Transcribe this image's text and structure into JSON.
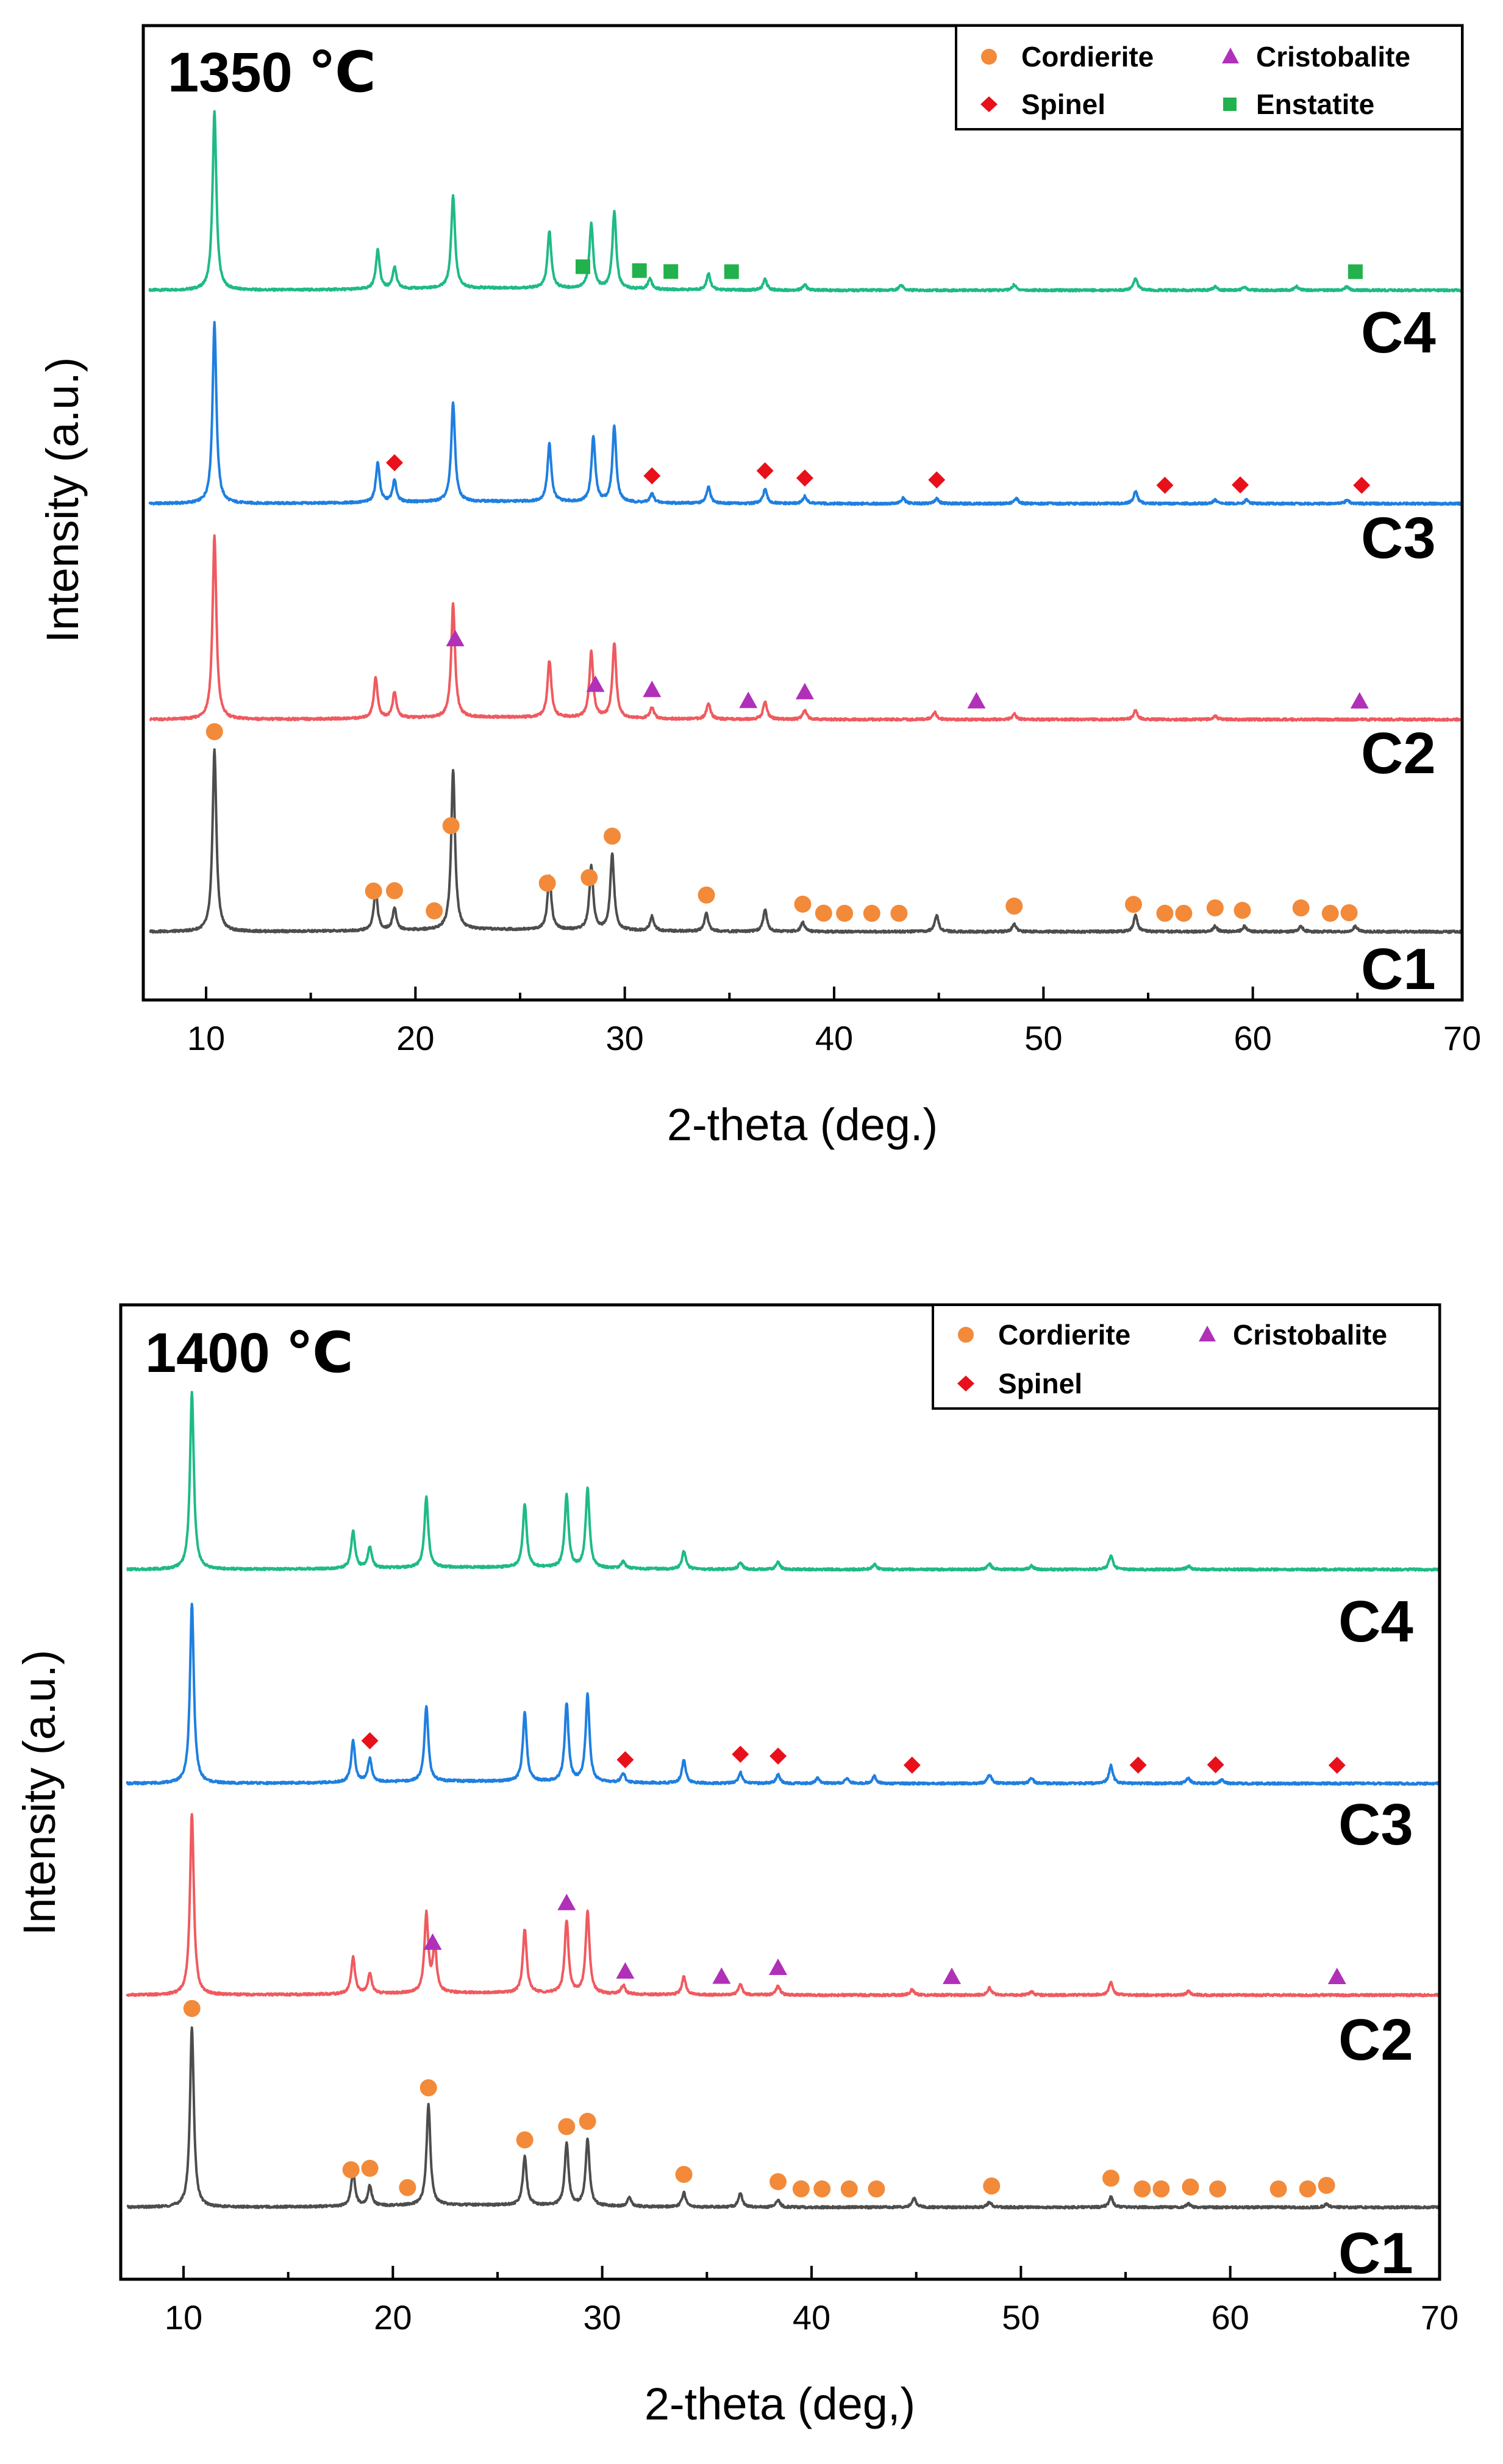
{
  "chart_data": [
    {
      "type": "line",
      "title": "1350 ℃",
      "xlabel": "2-theta (deg.)",
      "ylabel": "Intensity (a.u.)",
      "xlim": [
        7,
        70
      ],
      "xticks": [
        "10",
        "20",
        "30",
        "40",
        "50",
        "60",
        "70"
      ],
      "colors": {
        "C1": "#4d4d4d",
        "C2": "#ef5a5f",
        "C3": "#1f7fe0",
        "C4": "#1fba86"
      },
      "legend": [
        {
          "label": "Cordierite",
          "marker": "circle",
          "color": "#f28a3a"
        },
        {
          "label": "Cristobalite",
          "marker": "triangle",
          "color": "#b030b8"
        },
        {
          "label": "Spinel",
          "marker": "diamond",
          "color": "#e8101a"
        },
        {
          "label": "Enstatite",
          "marker": "square",
          "color": "#22b14c"
        }
      ],
      "series": [
        {
          "name": "C4",
          "peaks": [
            [
              10.4,
              1.0
            ],
            [
              18.2,
              0.22
            ],
            [
              19.0,
              0.12
            ],
            [
              21.8,
              0.52
            ],
            [
              26.4,
              0.32
            ],
            [
              28.4,
              0.36
            ],
            [
              29.5,
              0.43
            ],
            [
              31.2,
              0.06
            ],
            [
              34.0,
              0.09
            ],
            [
              36.7,
              0.06
            ],
            [
              38.6,
              0.03
            ],
            [
              43.2,
              0.03
            ],
            [
              48.6,
              0.03
            ],
            [
              54.4,
              0.07
            ],
            [
              58.2,
              0.02
            ],
            [
              59.6,
              0.02
            ],
            [
              62.1,
              0.02
            ],
            [
              64.5,
              0.02
            ]
          ]
        },
        {
          "name": "C3",
          "peaks": [
            [
              10.4,
              1.0
            ],
            [
              18.2,
              0.22
            ],
            [
              19.0,
              0.12
            ],
            [
              21.8,
              0.55
            ],
            [
              26.4,
              0.32
            ],
            [
              28.5,
              0.36
            ],
            [
              29.5,
              0.42
            ],
            [
              31.3,
              0.05
            ],
            [
              34.0,
              0.09
            ],
            [
              36.7,
              0.08
            ],
            [
              38.6,
              0.04
            ],
            [
              43.3,
              0.03
            ],
            [
              44.9,
              0.03
            ],
            [
              48.7,
              0.03
            ],
            [
              54.4,
              0.07
            ],
            [
              58.2,
              0.02
            ],
            [
              59.7,
              0.02
            ],
            [
              64.5,
              0.02
            ]
          ]
        },
        {
          "name": "C2",
          "peaks": [
            [
              10.4,
              1.0
            ],
            [
              18.1,
              0.22
            ],
            [
              19.0,
              0.14
            ],
            [
              21.8,
              0.62
            ],
            [
              26.4,
              0.31
            ],
            [
              28.4,
              0.36
            ],
            [
              29.5,
              0.41
            ],
            [
              31.3,
              0.06
            ],
            [
              34.0,
              0.09
            ],
            [
              36.7,
              0.1
            ],
            [
              38.6,
              0.05
            ],
            [
              44.8,
              0.04
            ],
            [
              48.6,
              0.03
            ],
            [
              54.4,
              0.05
            ],
            [
              58.2,
              0.02
            ]
          ]
        },
        {
          "name": "C1",
          "peaks": [
            [
              10.4,
              1.0
            ],
            [
              18.1,
              0.22
            ],
            [
              19.0,
              0.12
            ],
            [
              21.8,
              0.88
            ],
            [
              26.4,
              0.3
            ],
            [
              28.4,
              0.35
            ],
            [
              29.4,
              0.42
            ],
            [
              31.3,
              0.08
            ],
            [
              33.9,
              0.1
            ],
            [
              36.7,
              0.12
            ],
            [
              38.5,
              0.05
            ],
            [
              44.9,
              0.09
            ],
            [
              48.6,
              0.04
            ],
            [
              54.4,
              0.09
            ],
            [
              58.2,
              0.03
            ],
            [
              59.6,
              0.03
            ],
            [
              62.3,
              0.03
            ],
            [
              64.9,
              0.03
            ]
          ]
        }
      ],
      "markers": [
        {
          "series": "C4",
          "phase": "Enstatite",
          "x": [
            28.0,
            30.7,
            32.2,
            35.1,
            64.9
          ]
        },
        {
          "series": "C3",
          "phase": "Spinel",
          "x": [
            19.0,
            31.3,
            36.7,
            38.6,
            44.9,
            55.8,
            59.4,
            65.2
          ]
        },
        {
          "series": "C2",
          "phase": "Cristobalite",
          "x": [
            21.9,
            28.6,
            31.3,
            35.9,
            38.6,
            46.8,
            65.1
          ]
        },
        {
          "series": "C1",
          "phase": "Cordierite",
          "x": [
            10.4,
            18.0,
            19.0,
            20.9,
            21.7,
            26.3,
            28.3,
            29.4,
            33.9,
            38.5,
            39.5,
            40.5,
            41.8,
            43.1,
            48.6,
            54.3,
            55.8,
            56.7,
            58.2,
            59.5,
            62.3,
            63.7,
            64.6
          ]
        }
      ]
    },
    {
      "type": "line",
      "title": "1400 ℃",
      "xlabel": "2-theta (deg,)",
      "ylabel": "Intensity (a.u.)",
      "xlim": [
        7,
        70
      ],
      "xticks": [
        "10",
        "20",
        "30",
        "40",
        "50",
        "60",
        "70"
      ],
      "colors": {
        "C1": "#4d4d4d",
        "C2": "#ef5a5f",
        "C3": "#1f7fe0",
        "C4": "#1fba86"
      },
      "legend": [
        {
          "label": "Cordierite",
          "marker": "circle",
          "color": "#f28a3a"
        },
        {
          "label": "Cristobalite",
          "marker": "triangle",
          "color": "#b030b8"
        },
        {
          "label": "Spinel",
          "marker": "diamond",
          "color": "#e8101a"
        }
      ],
      "series": [
        {
          "name": "C4",
          "peaks": [
            [
              10.4,
              1.0
            ],
            [
              18.1,
              0.21
            ],
            [
              18.9,
              0.12
            ],
            [
              21.6,
              0.4
            ],
            [
              26.3,
              0.36
            ],
            [
              28.3,
              0.41
            ],
            [
              29.3,
              0.45
            ],
            [
              31.0,
              0.04
            ],
            [
              33.9,
              0.1
            ],
            [
              36.6,
              0.04
            ],
            [
              38.4,
              0.04
            ],
            [
              43.0,
              0.03
            ],
            [
              48.5,
              0.03
            ],
            [
              50.5,
              0.02
            ],
            [
              54.3,
              0.08
            ],
            [
              58.0,
              0.02
            ]
          ]
        },
        {
          "name": "C3",
          "peaks": [
            [
              10.4,
              1.0
            ],
            [
              18.1,
              0.23
            ],
            [
              18.9,
              0.13
            ],
            [
              21.6,
              0.42
            ],
            [
              26.3,
              0.38
            ],
            [
              28.3,
              0.43
            ],
            [
              29.3,
              0.48
            ],
            [
              31.0,
              0.05
            ],
            [
              33.9,
              0.13
            ],
            [
              36.6,
              0.06
            ],
            [
              38.4,
              0.05
            ],
            [
              40.3,
              0.03
            ],
            [
              41.7,
              0.03
            ],
            [
              43.0,
              0.04
            ],
            [
              48.5,
              0.05
            ],
            [
              50.5,
              0.03
            ],
            [
              54.3,
              0.1
            ],
            [
              58.0,
              0.03
            ],
            [
              59.6,
              0.02
            ]
          ]
        },
        {
          "name": "C2",
          "peaks": [
            [
              10.4,
              1.0
            ],
            [
              18.1,
              0.2
            ],
            [
              18.9,
              0.11
            ],
            [
              21.6,
              0.43
            ],
            [
              22.0,
              0.25
            ],
            [
              26.3,
              0.35
            ],
            [
              28.3,
              0.4
            ],
            [
              29.3,
              0.45
            ],
            [
              31.0,
              0.05
            ],
            [
              33.9,
              0.1
            ],
            [
              36.6,
              0.06
            ],
            [
              38.4,
              0.05
            ],
            [
              44.8,
              0.03
            ],
            [
              48.5,
              0.04
            ],
            [
              50.5,
              0.02
            ],
            [
              54.3,
              0.07
            ],
            [
              58.0,
              0.02
            ]
          ]
        },
        {
          "name": "C1",
          "peaks": [
            [
              10.4,
              1.0
            ],
            [
              18.1,
              0.19
            ],
            [
              18.9,
              0.11
            ],
            [
              21.7,
              0.56
            ],
            [
              26.3,
              0.27
            ],
            [
              28.3,
              0.34
            ],
            [
              29.3,
              0.37
            ],
            [
              31.3,
              0.05
            ],
            [
              33.9,
              0.08
            ],
            [
              36.6,
              0.08
            ],
            [
              38.4,
              0.04
            ],
            [
              44.9,
              0.05
            ],
            [
              48.5,
              0.03
            ],
            [
              54.3,
              0.06
            ],
            [
              58.0,
              0.02
            ],
            [
              64.6,
              0.02
            ]
          ]
        }
      ],
      "markers": [
        {
          "series": "C3",
          "phase": "Spinel",
          "x": [
            18.9,
            31.1,
            36.6,
            38.4,
            44.8,
            55.6,
            59.3,
            65.1
          ]
        },
        {
          "series": "C2",
          "phase": "Cristobalite",
          "x": [
            21.9,
            28.3,
            31.1,
            35.7,
            38.4,
            46.7,
            65.1
          ]
        },
        {
          "series": "C1",
          "phase": "Cordierite",
          "x": [
            10.4,
            18.0,
            18.9,
            20.7,
            21.7,
            26.3,
            28.3,
            29.3,
            33.9,
            38.4,
            39.5,
            40.5,
            41.8,
            43.1,
            48.6,
            54.3,
            55.8,
            56.7,
            58.1,
            59.4,
            62.3,
            63.7,
            64.6
          ]
        }
      ]
    }
  ]
}
